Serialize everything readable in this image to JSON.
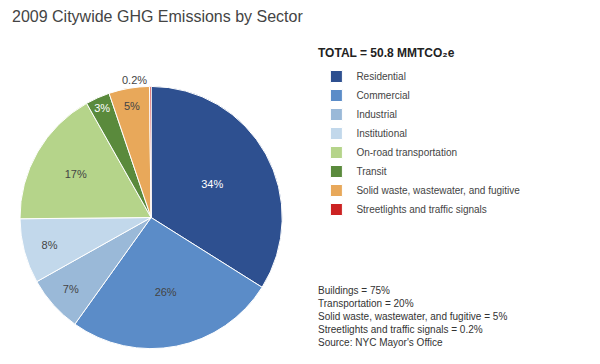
{
  "chart_data": {
    "type": "pie",
    "title": "2009 Citywide GHG Emissions by Sector",
    "subtitle": "TOTAL = 50.8 MMTCO₂e",
    "categories": [
      "Residential",
      "Commercial",
      "Industrial",
      "Institutional",
      "On-road transportation",
      "Transit",
      "Solid waste, wastewater, and fugitive",
      "Streetlights and traffic signals"
    ],
    "values": [
      34,
      26,
      7,
      8,
      17,
      3,
      5,
      0.2
    ],
    "value_labels": [
      "34%",
      "26%",
      "7%",
      "8%",
      "17%",
      "3%",
      "5%",
      "0.2%"
    ],
    "colors": [
      "#2e5090",
      "#5b8cc8",
      "#9ab9d8",
      "#c2d8eb",
      "#b5d48a",
      "#5a8a3c",
      "#e8a85a",
      "#cc2222"
    ],
    "data_labels": true,
    "legend": "right",
    "annotations": [
      "Buildings = 75%",
      "Transportation = 20%",
      "Solid waste, wastewater, and fugitive = 5%",
      "Streetlights and traffic signals = 0.2%",
      "Source: NYC Mayor's Office"
    ]
  }
}
